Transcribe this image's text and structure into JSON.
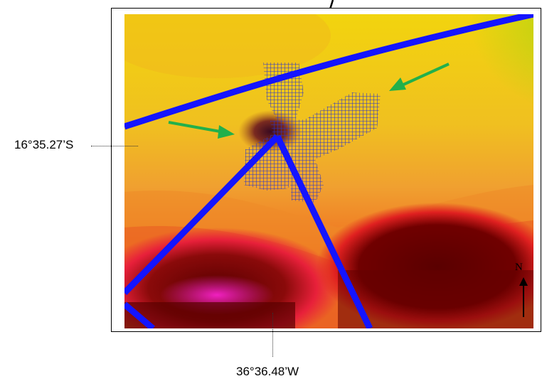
{
  "map": {
    "latitude_label": "16°35.27’S",
    "longitude_label": "36°36.48’W",
    "north_label": "N",
    "colors": {
      "line": "#1414ff",
      "grid": "#2a35c8",
      "arrow": "#22b04b",
      "background_high": "#f0d010",
      "background_low": "#6a0000"
    },
    "icons": [
      "north-arrow-icon",
      "green-arrow-icon"
    ]
  }
}
